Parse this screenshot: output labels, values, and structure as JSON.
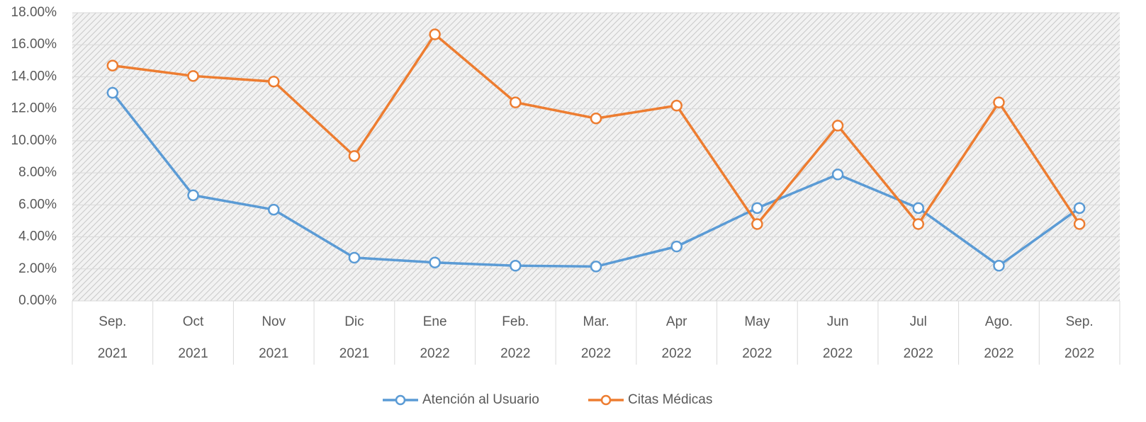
{
  "chart_data": {
    "type": "line",
    "categories": [
      "Sep.",
      "Oct",
      "Nov",
      "Dic",
      "Ene",
      "Feb.",
      "Mar.",
      "Apr",
      "May",
      "Jun",
      "Jul",
      "Ago.",
      "Sep."
    ],
    "category_years": [
      "2021",
      "2021",
      "2021",
      "2021",
      "2022",
      "2022",
      "2022",
      "2022",
      "2022",
      "2022",
      "2022",
      "2022",
      "2022"
    ],
    "series": [
      {
        "name": "Atención al Usuario",
        "color": "#5b9bd5",
        "values": [
          13.0,
          6.6,
          5.7,
          2.7,
          2.4,
          2.2,
          2.15,
          3.4,
          5.8,
          7.9,
          5.8,
          2.2,
          5.8
        ]
      },
      {
        "name": "Citas Médicas",
        "color": "#ed7d31",
        "values": [
          14.7,
          14.05,
          13.7,
          9.05,
          16.65,
          12.4,
          11.4,
          12.2,
          4.8,
          10.95,
          4.8,
          12.4,
          4.8
        ]
      }
    ],
    "ylim": [
      0,
      18
    ],
    "yticks": [
      {
        "value": 0,
        "label": "0.00%"
      },
      {
        "value": 2,
        "label": "2.00%"
      },
      {
        "value": 4,
        "label": "4.00%"
      },
      {
        "value": 6,
        "label": "6.00%"
      },
      {
        "value": 8,
        "label": "8.00%"
      },
      {
        "value": 10,
        "label": "10.00%"
      },
      {
        "value": 12,
        "label": "12.00%"
      },
      {
        "value": 14,
        "label": "14.00%"
      },
      {
        "value": 16,
        "label": "16.00%"
      },
      {
        "value": 18,
        "label": "18.00%"
      }
    ],
    "grid": true,
    "legend": "bottom"
  }
}
